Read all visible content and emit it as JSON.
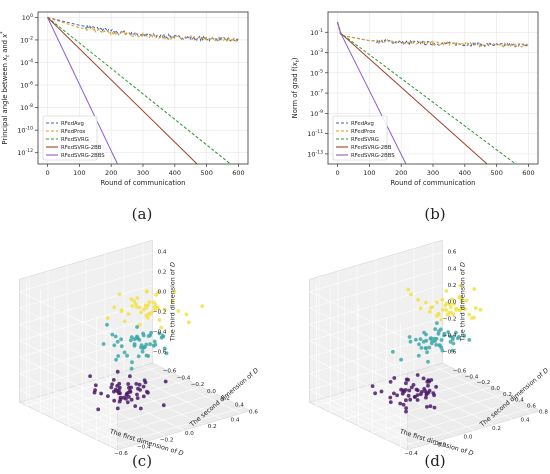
{
  "captions": [
    "(a)",
    "(b)",
    "(c)",
    "(d)"
  ],
  "colors": {
    "RFedAvg": "#3a62c0",
    "RFedProx": "#d89a1c",
    "RFedSVRG": "#2e9a2e",
    "RFedSVRG-2BB": "#a0402a",
    "RFedSVRG-2BBS": "#8a5fd0",
    "cluster_yellow": "#f2e24a",
    "cluster_teal": "#3fa8a8",
    "cluster_purple": "#4b1a6a"
  },
  "chart_data": [
    {
      "type": "line",
      "xlabel": "Round of communication",
      "ylabel": "Principal angle between x_t and x*",
      "ylabel_main": "Principal angle between ",
      "ylabel_var1": "x",
      "ylabel_sub1": "t",
      "ylabel_mid": " and ",
      "ylabel_var2": "x",
      "ylabel_sup2": "*",
      "y_scale": "log",
      "xlim": [
        -30,
        630
      ],
      "ylim": [
        1e-13,
        3
      ],
      "x_ticks": [
        "0",
        "100",
        "200",
        "300",
        "400",
        "500",
        "600"
      ],
      "x_tick_values": [
        0,
        100,
        200,
        300,
        400,
        500,
        600
      ],
      "y_ticks": [
        "10^0",
        "10^-2",
        "10^-4",
        "10^-6",
        "10^-8",
        "10^-10",
        "10^-12"
      ],
      "y_tick_exponents": [
        0,
        -2,
        -4,
        -6,
        -8,
        -10,
        -12
      ],
      "grid": true,
      "legend_position": "lower-left",
      "series": [
        {
          "name": "RFedAvg",
          "style": "dashed",
          "noisy": true,
          "x": [
            0,
            100,
            200,
            300,
            400,
            500,
            600
          ],
          "y": [
            1,
            0.2,
            0.06,
            0.03,
            0.018,
            0.013,
            0.01
          ]
        },
        {
          "name": "RFedProx",
          "style": "dashed",
          "noisy": true,
          "x": [
            0,
            100,
            200,
            300,
            400,
            500,
            600
          ],
          "y": [
            1,
            0.12,
            0.045,
            0.025,
            0.016,
            0.012,
            0.01
          ]
        },
        {
          "name": "RFedSVRG",
          "style": "dashed",
          "noisy": false,
          "x": [
            0,
            575
          ],
          "y": [
            1,
            1e-13
          ]
        },
        {
          "name": "RFedSVRG-2BB",
          "style": "solid",
          "noisy": false,
          "x": [
            0,
            470
          ],
          "y": [
            1,
            1e-13
          ]
        },
        {
          "name": "RFedSVRG-2BBS",
          "style": "solid",
          "noisy": false,
          "x": [
            0,
            220
          ],
          "y": [
            1,
            1e-13
          ]
        }
      ]
    },
    {
      "type": "line",
      "xlabel": "Round of communication",
      "ylabel": "Norm of grad f(x_t)",
      "ylabel_main": "Norm of grad f(",
      "ylabel_var1": "x",
      "ylabel_sub1": "t",
      "ylabel_end": ")",
      "y_scale": "log",
      "xlim": [
        -30,
        630
      ],
      "ylim": [
        1e-14,
        10
      ],
      "x_ticks": [
        "0",
        "100",
        "200",
        "300",
        "400",
        "500",
        "600"
      ],
      "x_tick_values": [
        0,
        100,
        200,
        300,
        400,
        500,
        600
      ],
      "y_ticks": [
        "10^-1",
        "10^-3",
        "10^-5",
        "10^-7",
        "10^-9",
        "10^-11",
        "10^-13"
      ],
      "y_tick_exponents": [
        -1,
        -3,
        -5,
        -7,
        -9,
        -11,
        -13
      ],
      "grid": true,
      "legend_position": "lower-left",
      "series": [
        {
          "name": "RFedAvg",
          "style": "dashed",
          "noisy": true,
          "x": [
            0,
            10,
            100,
            300,
            600
          ],
          "y": [
            1,
            0.05,
            0.015,
            0.008,
            0.005
          ]
        },
        {
          "name": "RFedProx",
          "style": "dashed",
          "noisy": true,
          "x": [
            0,
            10,
            100,
            300,
            600
          ],
          "y": [
            1,
            0.05,
            0.015,
            0.008,
            0.005
          ]
        },
        {
          "name": "RFedSVRG",
          "style": "dashed",
          "noisy": false,
          "x": [
            0,
            10,
            560
          ],
          "y": [
            1,
            0.08,
            1e-14
          ]
        },
        {
          "name": "RFedSVRG-2BB",
          "style": "solid",
          "noisy": false,
          "x": [
            0,
            10,
            470
          ],
          "y": [
            1,
            0.08,
            1e-14
          ]
        },
        {
          "name": "RFedSVRG-2BBS",
          "style": "solid",
          "noisy": false,
          "x": [
            0,
            10,
            215
          ],
          "y": [
            1,
            0.08,
            1e-14
          ]
        }
      ]
    },
    {
      "type": "scatter",
      "dimensions": 3,
      "xlabel_main": "The first dimension of ",
      "xlabel_var": "D",
      "ylabel_main": "The second dimension of ",
      "ylabel_var": "D",
      "zlabel_main": "The third dimension of ",
      "zlabel_var": "D",
      "x_ticks": [
        "−0.6",
        "−0.4",
        "−0.2",
        "0.0",
        "0.2",
        "0.4"
      ],
      "y_ticks": [
        "−0.6",
        "−0.4",
        "−0.2",
        "0.0",
        "0.2",
        "0.4",
        "0.6"
      ],
      "z_ticks": [
        "0.4",
        "0.2",
        "0.0",
        "−0.2",
        "−0.4",
        "−0.6"
      ],
      "clusters": [
        {
          "color_key": "cluster_yellow",
          "center": [
            0.15,
            0.05,
            0.45
          ],
          "count": 45
        },
        {
          "color_key": "cluster_teal",
          "center": [
            0.0,
            0.05,
            0.05
          ],
          "count": 50
        },
        {
          "color_key": "cluster_purple",
          "center": [
            -0.1,
            0.0,
            -0.55
          ],
          "count": 55
        }
      ]
    },
    {
      "type": "scatter",
      "dimensions": 3,
      "xlabel_main": "The first dimension of ",
      "xlabel_var": "D",
      "ylabel_main": "The second dimension of ",
      "ylabel_var": "D",
      "zlabel_main": "The third dimension of ",
      "zlabel_var": "D",
      "x_ticks": [
        "−0.4",
        "−0.2",
        "0.0",
        "0.2",
        "0.4"
      ],
      "y_ticks": [
        "−0.6",
        "−0.4",
        "−0.2",
        "0.0",
        "0.2",
        "0.4",
        "0.6",
        "0.8"
      ],
      "z_ticks": [
        "0.6",
        "0.4",
        "0.2",
        "0.0",
        "−0.2",
        "−0.4",
        "−0.6"
      ],
      "clusters": [
        {
          "color_key": "cluster_yellow",
          "center": [
            0.2,
            0.1,
            0.45
          ],
          "count": 45
        },
        {
          "color_key": "cluster_teal",
          "center": [
            0.05,
            0.05,
            0.05
          ],
          "count": 50
        },
        {
          "color_key": "cluster_purple",
          "center": [
            -0.1,
            0.0,
            -0.55
          ],
          "count": 55
        }
      ]
    }
  ]
}
